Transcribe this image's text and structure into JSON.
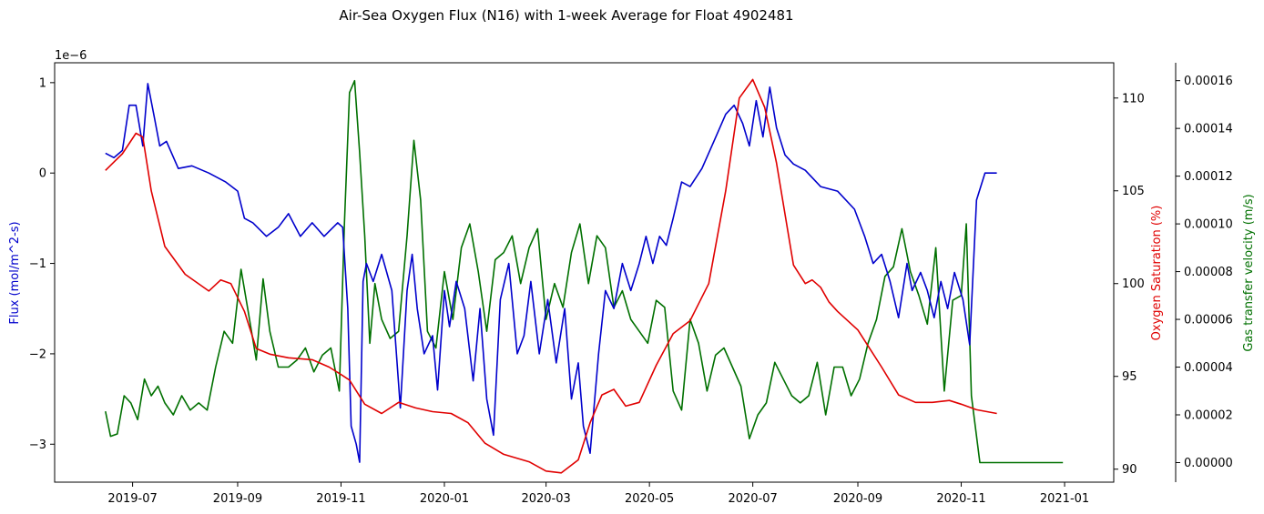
{
  "chart_data": {
    "type": "line",
    "title": "Air-Sea Oxygen Flux (N16) with 1-week Average for Float 4902481",
    "x_ticks": [
      "2019-07",
      "2019-09",
      "2019-11",
      "2020-01",
      "2020-03",
      "2020-05",
      "2020-07",
      "2020-09",
      "2020-11",
      "2021-01"
    ],
    "x_range": [
      "2019-05-16",
      "2021-01-30"
    ],
    "axes": {
      "left": {
        "label": "Flux (mol/m^2-s)",
        "color": "#0000cc",
        "ylim": [
          -3.42,
          1.22
        ],
        "offset_text": "1e−6",
        "ticks": [
          -3,
          -2,
          -1,
          0,
          1
        ],
        "tick_labels": [
          "−3",
          "−2",
          "−1",
          "0",
          "1"
        ]
      },
      "right": {
        "label": "Oxygen Saturation (%)",
        "color": "#e00000",
        "ylim": [
          89.3,
          111.9
        ],
        "ticks": [
          90,
          95,
          100,
          105,
          110
        ],
        "tick_labels": [
          "90",
          "95",
          "100",
          "105",
          "110"
        ]
      },
      "right2": {
        "label": "Gas transfer velocity (m/s)",
        "color": "#007000",
        "ylim": [
          -8.2e-06,
          0.0001675
        ],
        "ticks": [
          0,
          2e-05,
          4e-05,
          6e-05,
          8e-05,
          0.0001,
          0.00012,
          0.00014,
          0.00016
        ],
        "tick_labels": [
          "0.00000",
          "0.00002",
          "0.00004",
          "0.00006",
          "0.00008",
          "0.00010",
          "0.00012",
          "0.00014",
          "0.00016"
        ]
      }
    },
    "grid": false,
    "series": [
      {
        "axis": "left",
        "color": "#0000cc",
        "x": [
          "2019-06-15",
          "2019-06-20",
          "2019-06-25",
          "2019-06-29",
          "2019-07-03",
          "2019-07-07",
          "2019-07-10",
          "2019-07-14",
          "2019-07-17",
          "2019-07-21",
          "2019-07-28",
          "2019-08-05",
          "2019-08-15",
          "2019-08-25",
          "2019-09-01",
          "2019-09-05",
          "2019-09-10",
          "2019-09-18",
          "2019-09-25",
          "2019-10-01",
          "2019-10-08",
          "2019-10-15",
          "2019-10-22",
          "2019-10-30",
          "2019-11-02",
          "2019-11-05",
          "2019-11-07",
          "2019-11-10",
          "2019-11-12",
          "2019-11-14",
          "2019-11-16",
          "2019-11-20",
          "2019-11-25",
          "2019-12-01",
          "2019-12-06",
          "2019-12-10",
          "2019-12-13",
          "2019-12-16",
          "2019-12-20",
          "2019-12-25",
          "2019-12-28",
          "2020-01-01",
          "2020-01-04",
          "2020-01-08",
          "2020-01-13",
          "2020-01-18",
          "2020-01-22",
          "2020-01-26",
          "2020-01-30",
          "2020-02-03",
          "2020-02-08",
          "2020-02-13",
          "2020-02-17",
          "2020-02-21",
          "2020-02-26",
          "2020-03-02",
          "2020-03-07",
          "2020-03-12",
          "2020-03-16",
          "2020-03-20",
          "2020-03-23",
          "2020-03-27",
          "2020-04-01",
          "2020-04-05",
          "2020-04-10",
          "2020-04-15",
          "2020-04-20",
          "2020-04-25",
          "2020-04-29",
          "2020-05-03",
          "2020-05-07",
          "2020-05-11",
          "2020-05-15",
          "2020-05-20",
          "2020-05-25",
          "2020-06-01",
          "2020-06-08",
          "2020-06-15",
          "2020-06-20",
          "2020-06-25",
          "2020-06-29",
          "2020-07-03",
          "2020-07-07",
          "2020-07-11",
          "2020-07-15",
          "2020-07-20",
          "2020-07-25",
          "2020-08-01",
          "2020-08-10",
          "2020-08-20",
          "2020-08-30",
          "2020-09-05",
          "2020-09-10",
          "2020-09-15",
          "2020-09-20",
          "2020-09-25",
          "2020-09-30",
          "2020-10-03",
          "2020-10-08",
          "2020-10-12",
          "2020-10-16",
          "2020-10-20",
          "2020-10-24",
          "2020-10-28",
          "2020-11-02",
          "2020-11-06",
          "2020-11-10",
          "2020-11-15",
          "2020-11-22"
        ],
        "y": [
          0.22,
          0.17,
          0.25,
          0.75,
          0.75,
          0.3,
          0.99,
          0.6,
          0.3,
          0.35,
          0.05,
          0.08,
          0.0,
          -0.1,
          -0.2,
          -0.5,
          -0.55,
          -0.7,
          -0.6,
          -0.45,
          -0.7,
          -0.55,
          -0.7,
          -0.55,
          -0.6,
          -1.5,
          -2.8,
          -3.0,
          -3.2,
          -1.2,
          -1.0,
          -1.2,
          -0.9,
          -1.3,
          -2.6,
          -1.3,
          -0.9,
          -1.5,
          -2.0,
          -1.8,
          -2.4,
          -1.3,
          -1.7,
          -1.2,
          -1.5,
          -2.3,
          -1.5,
          -2.5,
          -2.9,
          -1.4,
          -1.0,
          -2.0,
          -1.8,
          -1.2,
          -2.0,
          -1.4,
          -2.1,
          -1.5,
          -2.5,
          -2.1,
          -2.8,
          -3.1,
          -2.0,
          -1.3,
          -1.5,
          -1.0,
          -1.3,
          -1.0,
          -0.7,
          -1.0,
          -0.7,
          -0.8,
          -0.5,
          -0.1,
          -0.15,
          0.05,
          0.35,
          0.65,
          0.75,
          0.55,
          0.3,
          0.8,
          0.4,
          0.95,
          0.5,
          0.2,
          0.1,
          0.03,
          -0.15,
          -0.2,
          -0.4,
          -0.7,
          -1.0,
          -0.9,
          -1.2,
          -1.6,
          -1.0,
          -1.3,
          -1.1,
          -1.3,
          -1.6,
          -1.2,
          -1.5,
          -1.1,
          -1.4,
          -1.9,
          -0.3,
          0.0,
          0.0
        ]
      },
      {
        "axis": "right",
        "color": "#e00000",
        "x": [
          "2019-06-15",
          "2019-06-25",
          "2019-07-03",
          "2019-07-07",
          "2019-07-12",
          "2019-07-20",
          "2019-08-01",
          "2019-08-15",
          "2019-08-22",
          "2019-08-28",
          "2019-09-05",
          "2019-09-12",
          "2019-09-20",
          "2019-10-01",
          "2019-10-15",
          "2019-10-25",
          "2019-11-01",
          "2019-11-06",
          "2019-11-15",
          "2019-11-25",
          "2019-12-05",
          "2019-12-15",
          "2019-12-25",
          "2020-01-05",
          "2020-01-15",
          "2020-01-25",
          "2020-02-05",
          "2020-02-20",
          "2020-03-01",
          "2020-03-10",
          "2020-03-20",
          "2020-03-27",
          "2020-04-03",
          "2020-04-10",
          "2020-04-17",
          "2020-04-25",
          "2020-05-05",
          "2020-05-15",
          "2020-05-25",
          "2020-06-05",
          "2020-06-15",
          "2020-06-23",
          "2020-07-01",
          "2020-07-08",
          "2020-07-15",
          "2020-07-25",
          "2020-08-01",
          "2020-08-05",
          "2020-08-10",
          "2020-08-15",
          "2020-08-20",
          "2020-09-01",
          "2020-09-15",
          "2020-09-25",
          "2020-10-05",
          "2020-10-15",
          "2020-10-25",
          "2020-11-01",
          "2020-11-10",
          "2020-11-22"
        ],
        "y": [
          106.1,
          107.0,
          108.1,
          107.9,
          105.0,
          102.0,
          100.5,
          99.6,
          100.2,
          100.0,
          98.5,
          96.5,
          96.2,
          96.0,
          95.9,
          95.5,
          95.1,
          94.8,
          93.5,
          93.0,
          93.6,
          93.3,
          93.1,
          93.0,
          92.5,
          91.4,
          90.8,
          90.4,
          89.9,
          89.8,
          90.5,
          92.5,
          94.0,
          94.3,
          93.4,
          93.6,
          95.6,
          97.3,
          98.0,
          100.0,
          105.0,
          110.0,
          111.0,
          109.5,
          106.5,
          101.0,
          100.0,
          100.2,
          99.8,
          99.0,
          98.5,
          97.5,
          95.5,
          94.0,
          93.6,
          93.6,
          93.7,
          93.5,
          93.2,
          93.0
        ]
      },
      {
        "axis": "right2",
        "color": "#007000",
        "x": [
          "2019-06-15",
          "2019-06-18",
          "2019-06-22",
          "2019-06-26",
          "2019-06-30",
          "2019-07-04",
          "2019-07-08",
          "2019-07-12",
          "2019-07-16",
          "2019-07-20",
          "2019-07-25",
          "2019-07-30",
          "2019-08-04",
          "2019-08-09",
          "2019-08-14",
          "2019-08-19",
          "2019-08-24",
          "2019-08-29",
          "2019-09-03",
          "2019-09-08",
          "2019-09-12",
          "2019-09-16",
          "2019-09-20",
          "2019-09-25",
          "2019-10-01",
          "2019-10-06",
          "2019-10-11",
          "2019-10-16",
          "2019-10-21",
          "2019-10-26",
          "2019-10-31",
          "2019-11-03",
          "2019-11-06",
          "2019-11-09",
          "2019-11-12",
          "2019-11-15",
          "2019-11-18",
          "2019-11-21",
          "2019-11-25",
          "2019-11-30",
          "2019-12-05",
          "2019-12-10",
          "2019-12-14",
          "2019-12-18",
          "2019-12-22",
          "2019-12-27",
          "2020-01-01",
          "2020-01-06",
          "2020-01-11",
          "2020-01-16",
          "2020-01-21",
          "2020-01-26",
          "2020-01-31",
          "2020-02-05",
          "2020-02-10",
          "2020-02-15",
          "2020-02-20",
          "2020-02-25",
          "2020-03-01",
          "2020-03-06",
          "2020-03-11",
          "2020-03-16",
          "2020-03-21",
          "2020-03-26",
          "2020-03-31",
          "2020-04-05",
          "2020-04-10",
          "2020-04-15",
          "2020-04-20",
          "2020-04-25",
          "2020-04-30",
          "2020-05-05",
          "2020-05-10",
          "2020-05-15",
          "2020-05-20",
          "2020-05-25",
          "2020-05-30",
          "2020-06-04",
          "2020-06-09",
          "2020-06-14",
          "2020-06-19",
          "2020-06-24",
          "2020-06-29",
          "2020-07-04",
          "2020-07-09",
          "2020-07-14",
          "2020-07-19",
          "2020-07-24",
          "2020-07-29",
          "2020-08-03",
          "2020-08-08",
          "2020-08-13",
          "2020-08-18",
          "2020-08-23",
          "2020-08-28",
          "2020-09-02",
          "2020-09-07",
          "2020-09-12",
          "2020-09-17",
          "2020-09-22",
          "2020-09-27",
          "2020-10-02",
          "2020-10-07",
          "2020-10-12",
          "2020-10-17",
          "2020-10-22",
          "2020-10-27",
          "2020-11-01",
          "2020-11-04",
          "2020-11-07",
          "2020-11-12",
          "2020-12-01",
          "2020-12-31"
        ],
        "y": [
          2.15e-05,
          1.1e-05,
          1.2e-05,
          2.8e-05,
          2.5e-05,
          1.8e-05,
          3.5e-05,
          2.8e-05,
          3.2e-05,
          2.5e-05,
          2e-05,
          2.8e-05,
          2.2e-05,
          2.5e-05,
          2.2e-05,
          4e-05,
          5.5e-05,
          5e-05,
          8.1e-05,
          6e-05,
          4.3e-05,
          7.7e-05,
          5.5e-05,
          4e-05,
          4e-05,
          4.3e-05,
          4.8e-05,
          3.8e-05,
          4.5e-05,
          4.8e-05,
          3e-05,
          0.0001,
          0.000155,
          0.00016,
          0.00013,
          9.5e-05,
          5e-05,
          7.5e-05,
          6e-05,
          5.2e-05,
          5.5e-05,
          9.5e-05,
          0.000135,
          0.00011,
          5.5e-05,
          4.8e-05,
          8e-05,
          6e-05,
          9e-05,
          0.0001,
          8e-05,
          5.5e-05,
          8.5e-05,
          8.8e-05,
          9.5e-05,
          7.5e-05,
          9e-05,
          9.8e-05,
          6e-05,
          7.5e-05,
          6.5e-05,
          8.8e-05,
          0.0001,
          7.5e-05,
          9.5e-05,
          9e-05,
          6.5e-05,
          7.2e-05,
          6e-05,
          5.5e-05,
          5e-05,
          6.8e-05,
          6.5e-05,
          3e-05,
          2.2e-05,
          6e-05,
          5e-05,
          3e-05,
          4.5e-05,
          4.8e-05,
          4e-05,
          3.2e-05,
          1e-05,
          2e-05,
          2.5e-05,
          4.2e-05,
          3.5e-05,
          2.8e-05,
          2.5e-05,
          2.8e-05,
          4.2e-05,
          2e-05,
          4e-05,
          4e-05,
          2.8e-05,
          3.5e-05,
          5e-05,
          6e-05,
          7.8e-05,
          8.2e-05,
          9.8e-05,
          8e-05,
          7e-05,
          5.8e-05,
          9e-05,
          3e-05,
          6.8e-05,
          7e-05,
          0.0001,
          2.8e-05,
          0.0,
          0.0,
          0.0
        ]
      }
    ]
  }
}
